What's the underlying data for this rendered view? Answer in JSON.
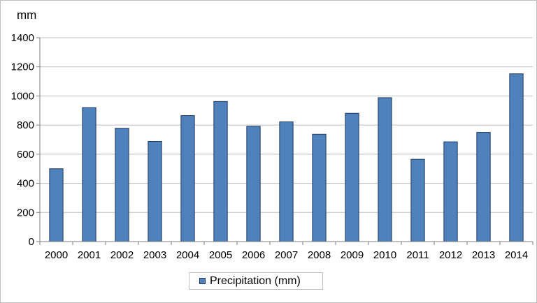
{
  "chart_data": {
    "type": "bar",
    "ylabel": "mm",
    "ylim": [
      0,
      1400
    ],
    "yticks": [
      0,
      200,
      400,
      600,
      800,
      1000,
      1200,
      1400
    ],
    "grid": true,
    "legend_position": "bottom",
    "categories": [
      "2000",
      "2001",
      "2002",
      "2003",
      "2004",
      "2005",
      "2006",
      "2007",
      "2008",
      "2009",
      "2010",
      "2011",
      "2012",
      "2013",
      "2014"
    ],
    "series": [
      {
        "name": "Precipitation (mm)",
        "color": "#4f81bd",
        "values": [
          500,
          920,
          778,
          688,
          865,
          962,
          792,
          822,
          737,
          881,
          988,
          565,
          685,
          750,
          1152
        ]
      }
    ]
  }
}
